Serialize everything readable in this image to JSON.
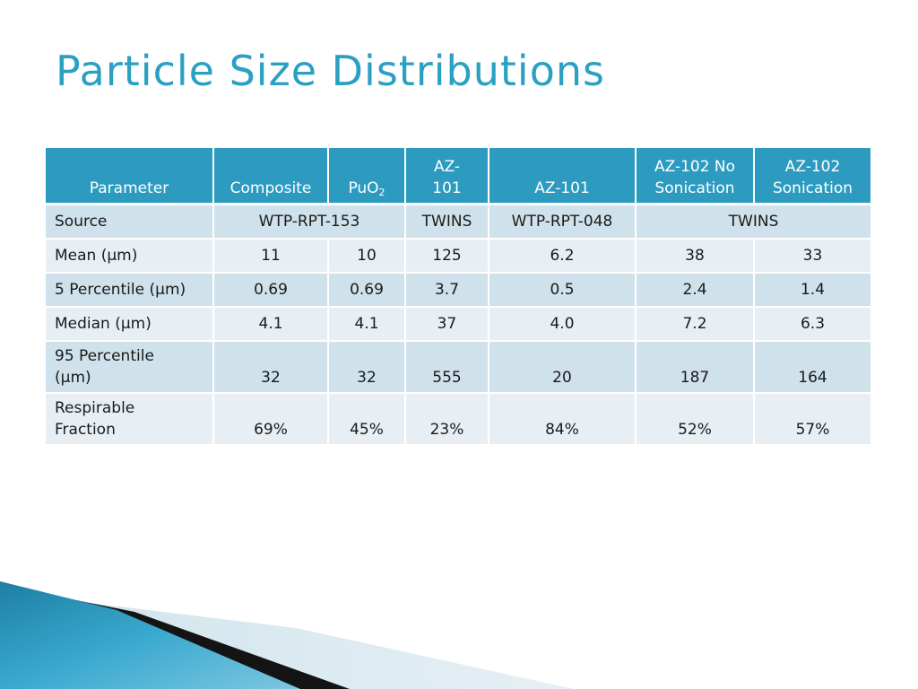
{
  "slide": {
    "title": "Particle Size Distributions"
  },
  "table": {
    "headers": {
      "parameter": "Parameter",
      "composite": "Composite",
      "puo2_base": "PuO",
      "puo2_sub": "2",
      "az101_a_line1": "AZ-",
      "az101_a_line2": "101",
      "az101_b": "AZ-101",
      "az102_no_line1": "AZ-102 No",
      "az102_no_line2": "Sonication",
      "az102_son_line1": "AZ-102",
      "az102_son_line2": "Sonication"
    },
    "rows": {
      "source": {
        "label": "Source",
        "composite_puo2": "WTP-RPT-153",
        "az101_a": "TWINS",
        "az101_b": "WTP-RPT-048",
        "az102": "TWINS"
      },
      "mean": {
        "label": "Mean (µm)",
        "values": [
          "11",
          "10",
          "125",
          "6.2",
          "38",
          "33"
        ]
      },
      "p5": {
        "label": "5 Percentile (µm)",
        "values": [
          "0.69",
          "0.69",
          "3.7",
          "0.5",
          "2.4",
          "1.4"
        ]
      },
      "median": {
        "label": "Median (µm)",
        "values": [
          "4.1",
          "4.1",
          "37",
          "4.0",
          "7.2",
          "6.3"
        ]
      },
      "p95": {
        "label_line1": "95 Percentile",
        "label_line2": "(µm)",
        "values": [
          "32",
          "32",
          "555",
          "20",
          "187",
          "164"
        ]
      },
      "respirable": {
        "label_line1": "Respirable",
        "label_line2": "Fraction",
        "values": [
          "69%",
          "45%",
          "23%",
          "84%",
          "52%",
          "57%"
        ]
      }
    }
  },
  "colors": {
    "title": "#2aa0c2",
    "header_bg": "#2d9bbf",
    "row_dark": "#cfe1ea",
    "row_light": "#e8eff4"
  }
}
